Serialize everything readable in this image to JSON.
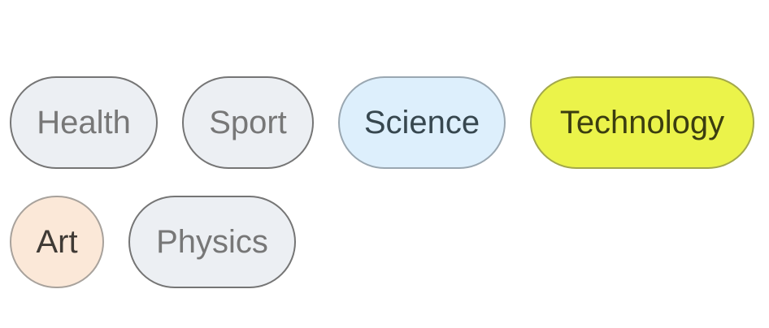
{
  "chips": [
    {
      "id": "health",
      "label": "Health"
    },
    {
      "id": "sport",
      "label": "Sport"
    },
    {
      "id": "science",
      "label": "Science"
    },
    {
      "id": "technology",
      "label": "Technology"
    },
    {
      "id": "art",
      "label": "Art"
    },
    {
      "id": "physics",
      "label": "Physics"
    }
  ],
  "colors": {
    "default_fill": "#eceff3",
    "default_border": "#757575",
    "default_text": "#777777",
    "science_fill": "#ddeffc",
    "technology_fill": "#ebf34a",
    "art_fill": "#fbe8d8"
  }
}
